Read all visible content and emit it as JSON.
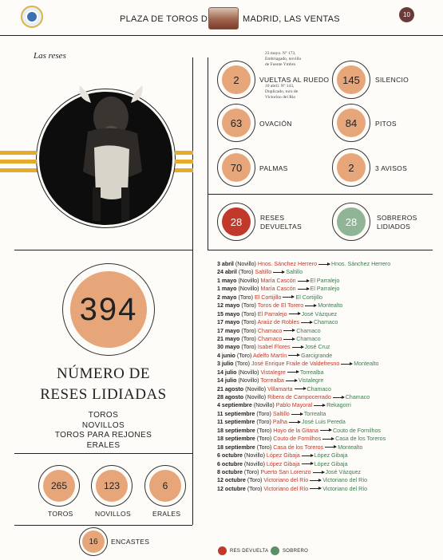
{
  "header": {
    "title_left": "PLAZA DE TOROS DE",
    "title_right": "MADRID, LAS VENTAS",
    "page_number": "10"
  },
  "section_label": "Las reses",
  "stats": {
    "vueltas": {
      "value": "2",
      "label": "VUELTAS AL RUEDO"
    },
    "silencio": {
      "value": "145",
      "label": "SILENCIO"
    },
    "ovacion": {
      "value": "63",
      "label": "OVACIÓN"
    },
    "pitos": {
      "value": "84",
      "label": "PITOS"
    },
    "palmas": {
      "value": "70",
      "label": "PALMAS"
    },
    "avisos": {
      "value": "2",
      "label": "3 AVISOS"
    },
    "devueltas": {
      "value": "28",
      "label_1": "RESES",
      "label_2": "DEVUELTAS"
    },
    "sobreros": {
      "value": "28",
      "label_1": "SOBREROS",
      "label_2": "LIDIADOS"
    }
  },
  "notes": {
    "note1": [
      "23 mayo. Nº 173,",
      "Embriagado, novillo",
      "de Fuente Ymbro"
    ],
    "note2": [
      "10 abril. Nº 143,",
      "Duplicado, toro de",
      "Victorino del Río"
    ]
  },
  "lidiadas": {
    "total": "394",
    "title_1": "NÚMERO DE",
    "title_2": "RESES LIDIADAS",
    "types": [
      "TOROS",
      "NOVILLOS",
      "TOROS PARA REJONES",
      "ERALES"
    ]
  },
  "bottom": {
    "toros": {
      "value": "265",
      "label": "TOROS"
    },
    "novillos": {
      "value": "123",
      "label": "NOVILLOS"
    },
    "erales": {
      "value": "6",
      "label": "ERALES"
    },
    "encastes": {
      "value": "16",
      "label": "ENCASTES"
    }
  },
  "list": [
    {
      "date": "3 abril",
      "type": "(Novillo)",
      "from": "Hnos. Sánchez Herrero",
      "to": "Hnos. Sánchez Herrero"
    },
    {
      "date": "24 abril",
      "type": "(Toro)",
      "from": "Saltillo",
      "to": "Saltillo"
    },
    {
      "date": "1 mayo",
      "type": "(Novillo)",
      "from": "María Cascón",
      "to": "El Parralejo"
    },
    {
      "date": "1 mayo",
      "type": "(Novillo)",
      "from": "María Cascón",
      "to": "El Parralejo"
    },
    {
      "date": "2 mayo",
      "type": "(Toro)",
      "from": "El Cortijillo",
      "to": "El Cortijillo"
    },
    {
      "date": "12 mayo",
      "type": "(Toro)",
      "from": "Toros de El Torero",
      "to": "Montealto"
    },
    {
      "date": "15 mayo",
      "type": "(Toro)",
      "from": "El Parralejo",
      "to": "José Vázquez"
    },
    {
      "date": "17 mayo",
      "type": "(Toro)",
      "from": "Araúz de Robles",
      "to": "Chamaco"
    },
    {
      "date": "17 mayo",
      "type": "(Toro)",
      "from": "Chamaco",
      "to": "Chamaco"
    },
    {
      "date": "21 mayo",
      "type": "(Toro)",
      "from": "Chamaco",
      "to": "Chamaco"
    },
    {
      "date": "30 mayo",
      "type": "(Toro)",
      "from": "Isabel Flores",
      "to": "José Cruz"
    },
    {
      "date": "4 junio",
      "type": "(Toro)",
      "from": "Adelfo Martín",
      "to": "Garcigrande"
    },
    {
      "date": "3 julio",
      "type": "(Toro)",
      "from": "José Enrique Fraile de Valdefresno",
      "to": "Montealto"
    },
    {
      "date": "14 julio",
      "type": "(Novillo)",
      "from": "Vistalegre",
      "to": "Torrealba"
    },
    {
      "date": "14 julio",
      "type": "(Novillo)",
      "from": "Torrealba",
      "to": "Vistalegre"
    },
    {
      "date": "21 agosto",
      "type": "(Novillo)",
      "from": "Villamarta",
      "to": "Chamaco"
    },
    {
      "date": "28 agosto",
      "type": "(Novillo)",
      "from": "Ribera de Campocerrado",
      "to": "Chamaco"
    },
    {
      "date": "4 septiembre",
      "type": "(Novillo)",
      "from": "Pablo Mayoral",
      "to": "Rekagorri"
    },
    {
      "date": "11 septiembre",
      "type": "(Toro)",
      "from": "Saltillo",
      "to": "Torrealta"
    },
    {
      "date": "11 septiembre",
      "type": "(Toro)",
      "from": "Palha",
      "to": "José Luis Pereda"
    },
    {
      "date": "18 septiembre",
      "type": "(Toro)",
      "from": "Hoyo de la Gitana",
      "to": "Couto de Fornilhos"
    },
    {
      "date": "18 septiembre",
      "type": "(Toro)",
      "from": "Couto de Fornilhos",
      "to": "Casa de los Toreros"
    },
    {
      "date": "18 septiembre",
      "type": "(Toro)",
      "from": "Casa de los Toreros",
      "to": "Montealto"
    },
    {
      "date": "6 octubre",
      "type": "(Novillo)",
      "from": "López Gibaja",
      "to": "López Gibaja"
    },
    {
      "date": "6 octubre",
      "type": "(Novillo)",
      "from": "López Gibaja",
      "to": "López Gibaja"
    },
    {
      "date": "8 octubre",
      "type": "(Toro)",
      "from": "Puerto San Lorenzo",
      "to": "José Vázquez"
    },
    {
      "date": "12 octubre",
      "type": "(Toro)",
      "from": "Victoriano del Río",
      "to": "Victoriano del Río"
    },
    {
      "date": "12 octubre",
      "type": "(Toro)",
      "from": "Victoriano del Río",
      "to": "Victoriano del Río"
    }
  ],
  "legend": {
    "devuelta": "RES DEVUELTA",
    "sobrero": "SOBRERO",
    "red": "#c0392b",
    "green": "#3d7a4f"
  },
  "colors": {
    "accent": "#e7a67a",
    "stripe": "#e3ac2c"
  },
  "icons": [
    "seal-logo-icon",
    "bullring-photo-icon",
    "bull-illustration-icon"
  ]
}
